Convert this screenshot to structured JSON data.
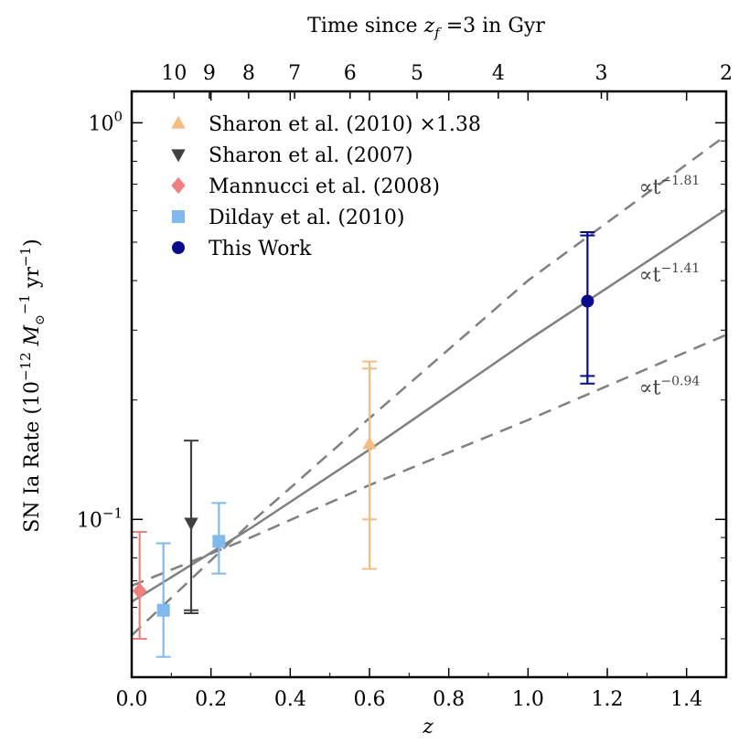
{
  "chart_data": {
    "type": "scatter",
    "xlabel": "z",
    "ylabel": "SN Ia Rate (10",
    "ylabel_parts": [
      "SN Ia Rate (10",
      "−12",
      " M",
      "⊙",
      "−1",
      " yr",
      "−1",
      ")"
    ],
    "top_axis_title": "Time since z_f =3 in Gyr",
    "top_axis_title_parts": [
      "Time since ",
      "z",
      "f",
      " =3 in Gyr"
    ],
    "xlim": [
      0.0,
      1.5
    ],
    "ylim": [
      0.04,
      1.2
    ],
    "yscale": "log",
    "x_ticks": [
      {
        "value": 0.0,
        "label": "0.0"
      },
      {
        "value": 0.2,
        "label": "0.2"
      },
      {
        "value": 0.4,
        "label": "0.4"
      },
      {
        "value": 0.6,
        "label": "0.6"
      },
      {
        "value": 0.8,
        "label": "0.8"
      },
      {
        "value": 1.0,
        "label": "1.0"
      },
      {
        "value": 1.2,
        "label": "1.2"
      },
      {
        "value": 1.4,
        "label": "1.4"
      }
    ],
    "y_ticks": [
      {
        "value": 0.1,
        "base": "10",
        "exp": "−1"
      },
      {
        "value": 1.0,
        "base": "10",
        "exp": "0"
      }
    ],
    "top_ticks": [
      {
        "z": 0.107,
        "label": "10"
      },
      {
        "z": 0.196,
        "label": "9"
      },
      {
        "z": 0.295,
        "label": "8"
      },
      {
        "z": 0.411,
        "label": "7"
      },
      {
        "z": 0.551,
        "label": "6"
      },
      {
        "z": 0.72,
        "label": "5"
      },
      {
        "z": 0.925,
        "label": "4"
      },
      {
        "z": 1.185,
        "label": "3"
      },
      {
        "z": 1.5,
        "label": "2"
      }
    ],
    "series": [
      {
        "name": "Sharon et al. (2010)  ×1.38",
        "marker": "triangle-up",
        "color": "#f5bc80",
        "points": [
          {
            "x": 0.6,
            "y": 0.155,
            "yerr_low": 0.075,
            "yerr_high": 0.25,
            "inner_low": 0.1,
            "inner_high": 0.24
          }
        ]
      },
      {
        "name": "Sharon et al. (2007)",
        "marker": "triangle-down",
        "color": "#404040",
        "points": [
          {
            "x": 0.15,
            "y": 0.098,
            "yerr_low": 0.058,
            "yerr_high": 0.158,
            "inner_low": 0.059,
            "inner_high": null
          }
        ]
      },
      {
        "name": "Mannucci et al. (2008)",
        "marker": "diamond",
        "color": "#f08080",
        "points": [
          {
            "x": 0.02,
            "y": 0.066,
            "yerr_low": 0.05,
            "yerr_high": 0.093,
            "inner_low": null,
            "inner_high": null
          }
        ]
      },
      {
        "name": "Dilday et al. (2010)",
        "marker": "square",
        "color": "#7fb9ee",
        "points": [
          {
            "x": 0.08,
            "y": 0.059,
            "yerr_low": 0.045,
            "yerr_high": 0.087,
            "inner_low": null,
            "inner_high": null
          },
          {
            "x": 0.22,
            "y": 0.088,
            "yerr_low": 0.073,
            "yerr_high": 0.11,
            "inner_low": null,
            "inner_high": null
          }
        ]
      },
      {
        "name": "This Work",
        "marker": "circle",
        "color": "#0a0a8f",
        "points": [
          {
            "x": 1.15,
            "y": 0.355,
            "yerr_low": 0.22,
            "yerr_high": 0.53,
            "inner_low": 0.23,
            "inner_high": 0.52
          }
        ]
      }
    ],
    "fit_lines": [
      {
        "label_base": "∝t",
        "label_exp": "−1.81",
        "style": "dashed",
        "color": "#808080",
        "points": [
          [
            0.0,
            0.051
          ],
          [
            0.3,
            0.098
          ],
          [
            0.6,
            0.18
          ],
          [
            1.0,
            0.4
          ],
          [
            1.5,
            0.93
          ]
        ]
      },
      {
        "label_base": "∝t",
        "label_exp": "−1.41",
        "style": "solid",
        "color": "#808080",
        "points": [
          [
            0.0,
            0.062
          ],
          [
            0.3,
            0.095
          ],
          [
            0.6,
            0.15
          ],
          [
            1.0,
            0.283
          ],
          [
            1.5,
            0.605
          ]
        ]
      },
      {
        "label_base": "∝t",
        "label_exp": "−0.94",
        "style": "dashed",
        "color": "#808080",
        "points": [
          [
            0.0,
            0.068
          ],
          [
            0.3,
            0.09
          ],
          [
            0.6,
            0.122
          ],
          [
            1.0,
            0.178
          ],
          [
            1.5,
            0.292
          ]
        ]
      }
    ],
    "legend_position": "top-left",
    "grid": false
  }
}
